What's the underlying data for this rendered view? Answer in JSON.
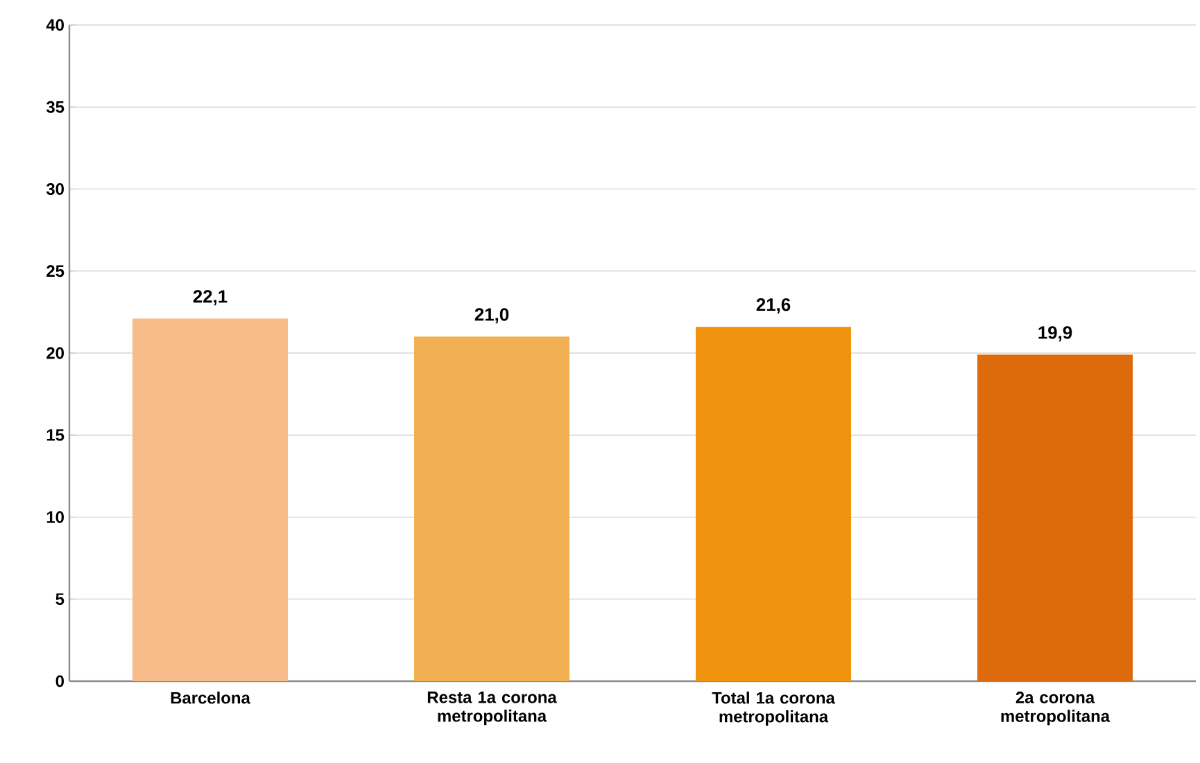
{
  "chart_data": {
    "type": "bar",
    "categories": [
      "Barcelona",
      "Resta 1a corona metropolitana",
      "Total 1a corona metropolitana",
      "2a corona metropolitana"
    ],
    "values": [
      22.1,
      21.0,
      21.6,
      19.9
    ],
    "value_labels": [
      "22,1",
      "21,0",
      "21,6",
      "19,9"
    ],
    "colors": [
      "#f8bb8a",
      "#f2b054",
      "#ef930f",
      "#dd6a0c"
    ],
    "ylim": [
      0,
      40
    ],
    "yticks": [
      0,
      5,
      10,
      15,
      20,
      25,
      30,
      35,
      40
    ],
    "grid": "y"
  }
}
